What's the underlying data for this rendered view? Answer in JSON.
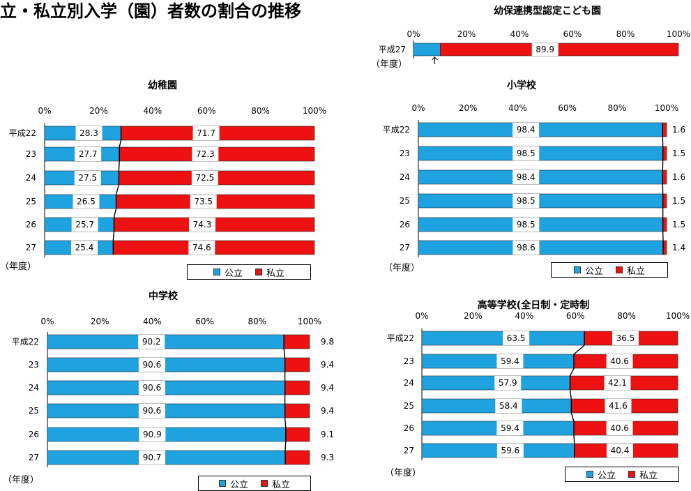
{
  "page_title": "立・私立別入学（園）者数の割合の推移",
  "colors": {
    "public": "#1ea3e0",
    "private": "#ee1111"
  },
  "legend": {
    "public": "公立",
    "private": "私立"
  },
  "unit_label": "（年度）",
  "chart_data": [
    {
      "id": "kodomoen",
      "type": "bar",
      "stacked": true,
      "orientation": "horizontal",
      "title": "幼保連携型認定こども園",
      "categories": [
        "平成27"
      ],
      "series": [
        {
          "name": "公立",
          "values": [
            10.1
          ]
        },
        {
          "name": "私立",
          "values": [
            89.9
          ]
        }
      ],
      "labels": {
        "public": [
          ""
        ],
        "private": [
          "89.9"
        ]
      },
      "xticks": [
        "0%",
        "20%",
        "40%",
        "60%",
        "80%",
        "100%"
      ],
      "xlim": [
        0,
        100
      ],
      "unit_label": "（年度）",
      "legend": false
    },
    {
      "id": "youchien",
      "type": "bar",
      "stacked": true,
      "orientation": "horizontal",
      "title": "幼稚園",
      "categories": [
        "平成22",
        "23",
        "24",
        "25",
        "26",
        "27"
      ],
      "series": [
        {
          "name": "公立",
          "values": [
            28.3,
            27.7,
            27.5,
            26.5,
            25.7,
            25.4
          ]
        },
        {
          "name": "私立",
          "values": [
            71.7,
            72.3,
            72.5,
            73.5,
            74.3,
            74.6
          ]
        }
      ],
      "labels": {
        "public": [
          "28.3",
          "27.7",
          "27.5",
          "26.5",
          "25.7",
          "25.4"
        ],
        "private": [
          "71.7",
          "72.3",
          "72.5",
          "73.5",
          "74.3",
          "74.6"
        ]
      },
      "xticks": [
        "0%",
        "20%",
        "40%",
        "60%",
        "80%",
        "100%"
      ],
      "xlim": [
        0,
        100
      ],
      "unit_label": "（年度）",
      "legend": true
    },
    {
      "id": "shougakkou",
      "type": "bar",
      "stacked": true,
      "orientation": "horizontal",
      "title": "小学校",
      "categories": [
        "平成22",
        "23",
        "24",
        "25",
        "26",
        "27"
      ],
      "series": [
        {
          "name": "公立",
          "values": [
            98.4,
            98.5,
            98.4,
            98.5,
            98.5,
            98.6
          ]
        },
        {
          "name": "私立",
          "values": [
            1.6,
            1.5,
            1.6,
            1.5,
            1.5,
            1.4
          ]
        }
      ],
      "labels": {
        "public": [
          "98.4",
          "98.5",
          "98.4",
          "98.5",
          "98.5",
          "98.6"
        ],
        "private": [
          "1.6",
          "1.5",
          "1.6",
          "1.5",
          "1.5",
          "1.4"
        ]
      },
      "xticks": [
        "0%",
        "20%",
        "40%",
        "60%",
        "80%",
        "100%"
      ],
      "xlim": [
        0,
        100
      ],
      "unit_label": "（年度）",
      "legend": true
    },
    {
      "id": "chuugakkou",
      "type": "bar",
      "stacked": true,
      "orientation": "horizontal",
      "title": "中学校",
      "categories": [
        "平成22",
        "23",
        "24",
        "25",
        "26",
        "27"
      ],
      "series": [
        {
          "name": "公立",
          "values": [
            90.2,
            90.6,
            90.6,
            90.6,
            90.9,
            90.7
          ]
        },
        {
          "name": "私立",
          "values": [
            9.8,
            9.4,
            9.4,
            9.4,
            9.1,
            9.3
          ]
        }
      ],
      "labels": {
        "public": [
          "90.2",
          "90.6",
          "90.6",
          "90.6",
          "90.9",
          "90.7"
        ],
        "private": [
          "9.8",
          "9.4",
          "9.4",
          "9.4",
          "9.1",
          "9.3"
        ]
      },
      "xticks": [
        "0%",
        "20%",
        "40%",
        "60%",
        "80%",
        "100%"
      ],
      "xlim": [
        0,
        100
      ],
      "unit_label": "（年度）",
      "legend": true
    },
    {
      "id": "koutougakkou",
      "type": "bar",
      "stacked": true,
      "orientation": "horizontal",
      "title": "高等学校(全日制・定時制",
      "categories": [
        "平成22",
        "23",
        "24",
        "25",
        "26",
        "27"
      ],
      "series": [
        {
          "name": "公立",
          "values": [
            63.5,
            59.4,
            57.9,
            58.4,
            59.4,
            59.6
          ]
        },
        {
          "name": "私立",
          "values": [
            36.5,
            40.6,
            42.1,
            41.6,
            40.6,
            40.4
          ]
        }
      ],
      "labels": {
        "public": [
          "63.5",
          "59.4",
          "57.9",
          "58.4",
          "59.4",
          "59.6"
        ],
        "private": [
          "36.5",
          "40.6",
          "42.1",
          "41.6",
          "40.6",
          "40.4"
        ]
      },
      "xticks": [
        "0%",
        "20%",
        "40%",
        "60%",
        "80%",
        "100%"
      ],
      "xlim": [
        0,
        100
      ],
      "unit_label": "（年度）",
      "legend": true
    }
  ]
}
